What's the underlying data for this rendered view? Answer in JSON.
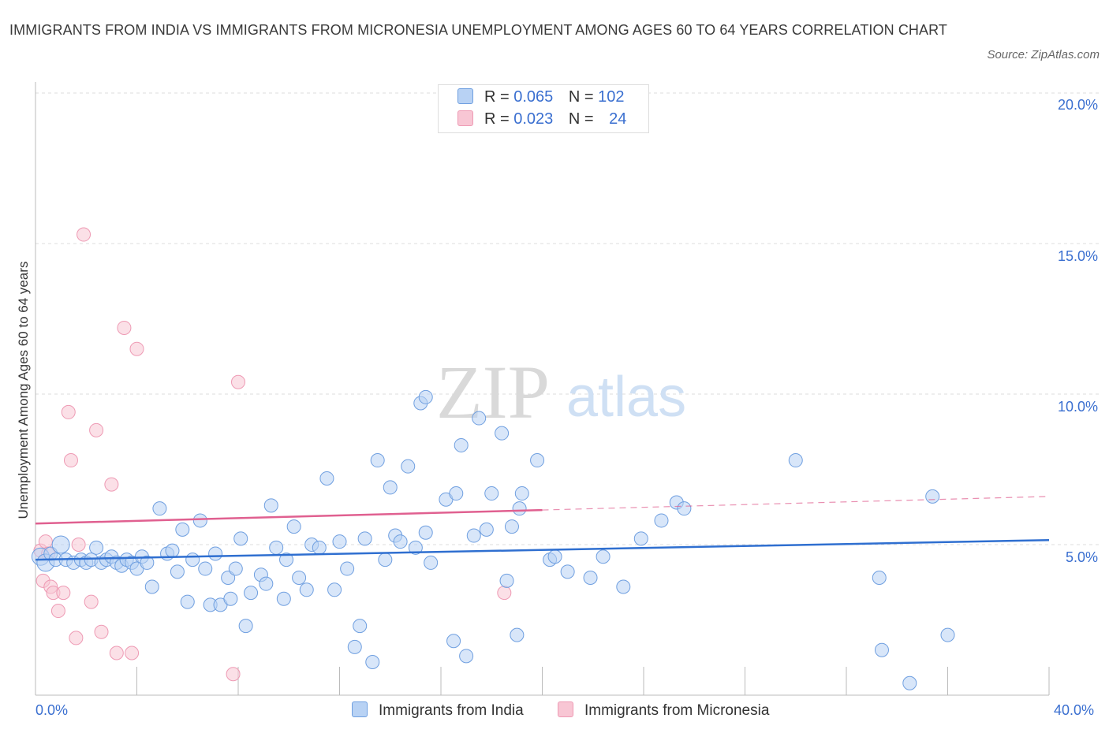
{
  "title": "IMMIGRANTS FROM INDIA VS IMMIGRANTS FROM MICRONESIA UNEMPLOYMENT AMONG AGES 60 TO 64 YEARS CORRELATION CHART",
  "source": "Source: ZipAtlas.com",
  "watermark": {
    "zip": "ZIP",
    "atlas": "atlas"
  },
  "legend": {
    "india": {
      "r_label": "R =",
      "r_value": "0.065",
      "n_label": "N =",
      "n_value": "102"
    },
    "micronesia": {
      "r_label": "R =",
      "r_value": "0.023",
      "n_label": "N =",
      "n_value": "24"
    }
  },
  "colors": {
    "india_fill": "#b8d2f4",
    "india_stroke": "#6f9fe0",
    "india_line": "#2f6fd0",
    "micronesia_fill": "#f8c6d4",
    "micronesia_stroke": "#ee9ab4",
    "micronesia_line": "#e06090",
    "tick_text": "#3a6fd0",
    "grid": "#dddddd"
  },
  "chart_data": {
    "type": "scatter",
    "title": "IMMIGRANTS FROM INDIA VS IMMIGRANTS FROM MICRONESIA UNEMPLOYMENT AMONG AGES 60 TO 64 YEARS CORRELATION CHART",
    "xlabel": "",
    "ylabel": "Unemployment Among Ages 60 to 64 years",
    "xlim": [
      0,
      40
    ],
    "ylim": [
      0,
      20
    ],
    "x_tick_labels": [
      "0.0%",
      "40.0%"
    ],
    "y_ticks": [
      5,
      10,
      15,
      20
    ],
    "y_tick_labels": [
      "5.0%",
      "10.0%",
      "15.0%",
      "20.0%"
    ],
    "grid": true,
    "legend_position": "bottom",
    "series": [
      {
        "name": "Immigrants from India",
        "points": [
          [
            0.2,
            4.6
          ],
          [
            0.4,
            4.4
          ],
          [
            0.6,
            4.7
          ],
          [
            0.8,
            4.5
          ],
          [
            1.0,
            5.0
          ],
          [
            1.2,
            4.5
          ],
          [
            1.5,
            4.4
          ],
          [
            1.8,
            4.5
          ],
          [
            2.0,
            4.4
          ],
          [
            2.2,
            4.5
          ],
          [
            2.4,
            4.9
          ],
          [
            2.6,
            4.4
          ],
          [
            2.8,
            4.5
          ],
          [
            3.0,
            4.6
          ],
          [
            3.2,
            4.4
          ],
          [
            3.4,
            4.3
          ],
          [
            3.6,
            4.5
          ],
          [
            3.8,
            4.4
          ],
          [
            4.0,
            4.2
          ],
          [
            4.2,
            4.6
          ],
          [
            4.4,
            4.4
          ],
          [
            4.6,
            3.6
          ],
          [
            4.9,
            6.2
          ],
          [
            5.2,
            4.7
          ],
          [
            5.4,
            4.8
          ],
          [
            5.6,
            4.1
          ],
          [
            5.8,
            5.5
          ],
          [
            6.0,
            3.1
          ],
          [
            6.2,
            4.5
          ],
          [
            6.5,
            5.8
          ],
          [
            6.7,
            4.2
          ],
          [
            6.9,
            3.0
          ],
          [
            7.1,
            4.7
          ],
          [
            7.3,
            3.0
          ],
          [
            7.6,
            3.9
          ],
          [
            7.7,
            3.2
          ],
          [
            7.9,
            4.2
          ],
          [
            8.1,
            5.2
          ],
          [
            8.3,
            2.3
          ],
          [
            8.5,
            3.4
          ],
          [
            8.9,
            4.0
          ],
          [
            9.1,
            3.7
          ],
          [
            9.3,
            6.3
          ],
          [
            9.5,
            4.9
          ],
          [
            9.8,
            3.2
          ],
          [
            9.9,
            4.5
          ],
          [
            10.2,
            5.6
          ],
          [
            10.4,
            3.9
          ],
          [
            10.7,
            3.5
          ],
          [
            10.9,
            5.0
          ],
          [
            11.2,
            4.9
          ],
          [
            11.5,
            7.2
          ],
          [
            11.8,
            3.5
          ],
          [
            12.0,
            5.1
          ],
          [
            12.3,
            4.2
          ],
          [
            12.6,
            1.6
          ],
          [
            12.8,
            2.3
          ],
          [
            13.0,
            5.2
          ],
          [
            13.3,
            1.1
          ],
          [
            13.5,
            7.8
          ],
          [
            13.8,
            4.5
          ],
          [
            14.0,
            6.9
          ],
          [
            14.2,
            5.3
          ],
          [
            14.4,
            5.1
          ],
          [
            14.7,
            7.6
          ],
          [
            15.0,
            4.9
          ],
          [
            15.2,
            9.7
          ],
          [
            15.4,
            5.4
          ],
          [
            15.6,
            4.4
          ],
          [
            16.2,
            6.5
          ],
          [
            16.5,
            1.8
          ],
          [
            16.6,
            6.7
          ],
          [
            16.8,
            8.3
          ],
          [
            17.0,
            1.3
          ],
          [
            17.3,
            5.3
          ],
          [
            17.5,
            9.2
          ],
          [
            17.8,
            5.5
          ],
          [
            18.0,
            6.7
          ],
          [
            18.4,
            8.7
          ],
          [
            18.6,
            3.8
          ],
          [
            18.8,
            5.6
          ],
          [
            19.0,
            2.0
          ],
          [
            19.1,
            6.2
          ],
          [
            19.2,
            6.7
          ],
          [
            19.8,
            7.8
          ],
          [
            20.3,
            4.5
          ],
          [
            20.5,
            4.6
          ],
          [
            21.0,
            4.1
          ],
          [
            21.9,
            3.9
          ],
          [
            22.4,
            4.6
          ],
          [
            23.2,
            3.6
          ],
          [
            23.9,
            5.2
          ],
          [
            24.7,
            5.8
          ],
          [
            25.3,
            6.4
          ],
          [
            25.6,
            6.2
          ],
          [
            30.0,
            7.8
          ],
          [
            33.3,
            3.9
          ],
          [
            33.4,
            1.5
          ],
          [
            34.5,
            0.4
          ],
          [
            35.4,
            6.6
          ],
          [
            36.0,
            2.0
          ],
          [
            15.4,
            9.9
          ]
        ],
        "trend": [
          [
            0,
            4.5
          ],
          [
            40,
            5.15
          ]
        ]
      },
      {
        "name": "Immigrants from Micronesia",
        "points": [
          [
            0.2,
            4.8
          ],
          [
            0.3,
            3.8
          ],
          [
            0.4,
            5.1
          ],
          [
            0.5,
            4.7
          ],
          [
            0.6,
            3.6
          ],
          [
            0.7,
            3.4
          ],
          [
            0.9,
            2.8
          ],
          [
            1.1,
            3.4
          ],
          [
            1.3,
            9.4
          ],
          [
            1.4,
            7.8
          ],
          [
            1.6,
            1.9
          ],
          [
            1.7,
            5.0
          ],
          [
            1.9,
            15.3
          ],
          [
            2.2,
            3.1
          ],
          [
            2.4,
            8.8
          ],
          [
            2.6,
            2.1
          ],
          [
            3.0,
            7.0
          ],
          [
            3.2,
            1.4
          ],
          [
            3.5,
            12.2
          ],
          [
            3.8,
            1.4
          ],
          [
            4.0,
            11.5
          ],
          [
            7.8,
            0.7
          ],
          [
            8.0,
            10.4
          ],
          [
            18.5,
            3.4
          ]
        ],
        "trend": [
          [
            0,
            5.7
          ],
          [
            40,
            6.6
          ]
        ],
        "trend_solid_until": 20
      }
    ]
  },
  "bottom_legend": {
    "india": "Immigrants from India",
    "micronesia": "Immigrants from Micronesia"
  }
}
